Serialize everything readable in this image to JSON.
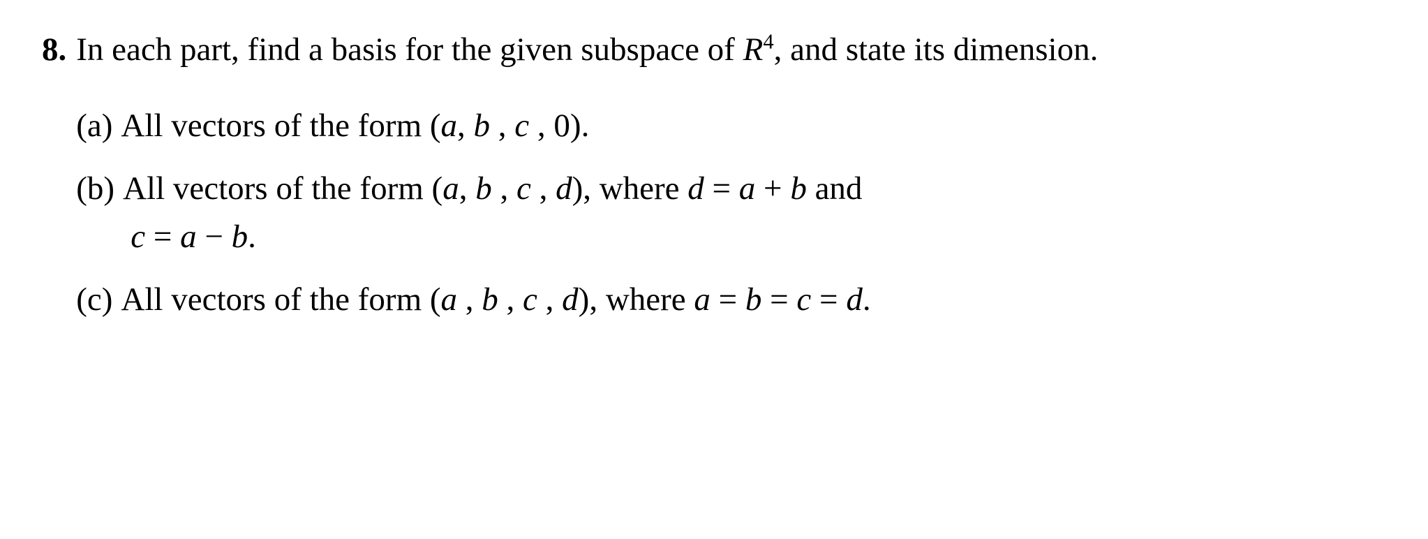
{
  "problem": {
    "number": "8.",
    "stem_prefix": "In each part, find a basis for the given subspace of ",
    "stem_R": "R",
    "stem_exp": "4",
    "stem_suffix": ", and state its dimension.",
    "parts": {
      "a": {
        "label": "(a)",
        "prefix": "All vectors of the form (",
        "v1": "a",
        "c1": ", ",
        "v2": "b",
        "c2": " , ",
        "v3": "c",
        "c3": " , 0).",
        "suffix": ""
      },
      "b": {
        "label": "(b)",
        "prefix": "All vectors of the form (",
        "v1": "a",
        "c1": ", ",
        "v2": "b",
        "c2": " , ",
        "v3": "c",
        "c3": " , ",
        "v4": "d",
        "close": "), where ",
        "eq1_lhs": "d",
        "eq1_mid": " = ",
        "eq1_r1": "a",
        "eq1_plus": " + ",
        "eq1_r2": "b",
        "tail": " and",
        "line2_lhs": "c",
        "line2_mid": " = ",
        "line2_r1": "a",
        "line2_minus": " − ",
        "line2_r2": "b",
        "line2_end": "."
      },
      "c": {
        "label": "(c)",
        "prefix": " All vectors of the form (",
        "v1": "a",
        "c1": " , ",
        "v2": "b",
        "c2": " , ",
        "v3": "c",
        "c3": " , ",
        "v4": "d",
        "close": "), where ",
        "e1": "a",
        "eq1": " = ",
        "e2": "b",
        "eq2": " = ",
        "e3": "c",
        "eq3": " = ",
        "e4": "d",
        "end": "."
      }
    }
  }
}
